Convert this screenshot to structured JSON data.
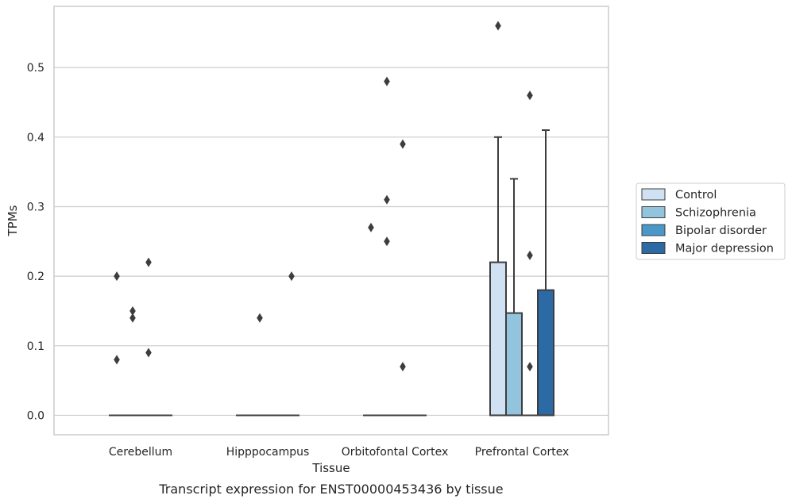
{
  "chart_data": {
    "type": "box",
    "xlabel": "Tissue",
    "ylabel": "TPMs",
    "caption": "Transcript expression for ENST00000453436 by tissue",
    "ylim": [
      -0.028,
      0.588
    ],
    "yticks": [
      0.0,
      0.1,
      0.2,
      0.3,
      0.4,
      0.5
    ],
    "ytick_labels": [
      "0.0",
      "0.1",
      "0.2",
      "0.3",
      "0.4",
      "0.5"
    ],
    "grid": "horizontal",
    "legend_position": "right",
    "categories": [
      "Cerebellum",
      "Hipppocampus",
      "Orbitofontal Cortex",
      "Prefrontal Cortex"
    ],
    "series": [
      {
        "name": "Control",
        "color": "#cfe1f2",
        "boxes": [
          {
            "q1": 0,
            "median": 0,
            "q3": 0,
            "whisker_low": 0,
            "whisker_high": 0,
            "outliers": [
              0.2,
              0.08
            ]
          },
          {
            "q1": 0,
            "median": 0,
            "q3": 0,
            "whisker_low": 0,
            "whisker_high": 0,
            "outliers": []
          },
          {
            "q1": 0,
            "median": 0,
            "q3": 0,
            "whisker_low": 0,
            "whisker_high": 0,
            "outliers": [
              0.27
            ]
          },
          {
            "q1": 0,
            "median": 0,
            "q3": 0.22,
            "whisker_low": 0,
            "whisker_high": 0.4,
            "outliers": [
              0.56
            ]
          }
        ]
      },
      {
        "name": "Schizophrenia",
        "color": "#93c4de",
        "boxes": [
          {
            "q1": 0,
            "median": 0,
            "q3": 0,
            "whisker_low": 0,
            "whisker_high": 0,
            "outliers": [
              0.15,
              0.14
            ]
          },
          {
            "q1": 0,
            "median": 0,
            "q3": 0,
            "whisker_low": 0,
            "whisker_high": 0,
            "outliers": [
              0.14
            ]
          },
          {
            "q1": 0,
            "median": 0,
            "q3": 0,
            "whisker_low": 0,
            "whisker_high": 0,
            "outliers": [
              0.48,
              0.31,
              0.25
            ]
          },
          {
            "q1": 0,
            "median": 0,
            "q3": 0.147,
            "whisker_low": 0,
            "whisker_high": 0.34,
            "outliers": []
          }
        ]
      },
      {
        "name": "Bipolar disorder",
        "color": "#4a98c9",
        "boxes": [
          {
            "q1": 0,
            "median": 0,
            "q3": 0,
            "whisker_low": 0,
            "whisker_high": 0,
            "outliers": [
              0.22,
              0.09
            ]
          },
          {
            "q1": 0,
            "median": 0,
            "q3": 0,
            "whisker_low": 0,
            "whisker_high": 0,
            "outliers": []
          },
          {
            "q1": 0,
            "median": 0,
            "q3": 0,
            "whisker_low": 0,
            "whisker_high": 0,
            "outliers": [
              0.39,
              0.07
            ]
          },
          {
            "q1": 0,
            "median": 0,
            "q3": 0,
            "whisker_low": 0,
            "whisker_high": 0,
            "outliers": [
              0.46,
              0.23,
              0.07
            ]
          }
        ]
      },
      {
        "name": "Major depression",
        "color": "#2c6aa6",
        "boxes": [
          {
            "q1": 0,
            "median": 0,
            "q3": 0,
            "whisker_low": 0,
            "whisker_high": 0,
            "outliers": []
          },
          {
            "q1": 0,
            "median": 0,
            "q3": 0,
            "whisker_low": 0,
            "whisker_high": 0,
            "outliers": [
              0.2
            ]
          },
          {
            "q1": 0,
            "median": 0,
            "q3": 0,
            "whisker_low": 0,
            "whisker_high": 0,
            "outliers": []
          },
          {
            "q1": 0,
            "median": 0,
            "q3": 0.18,
            "whisker_low": 0,
            "whisker_high": 0.41,
            "outliers": []
          }
        ]
      }
    ],
    "colors": {
      "edge": "#3d3d3d",
      "grid": "#cccccc",
      "frame": "#cccccc",
      "background": "#ffffff"
    }
  }
}
